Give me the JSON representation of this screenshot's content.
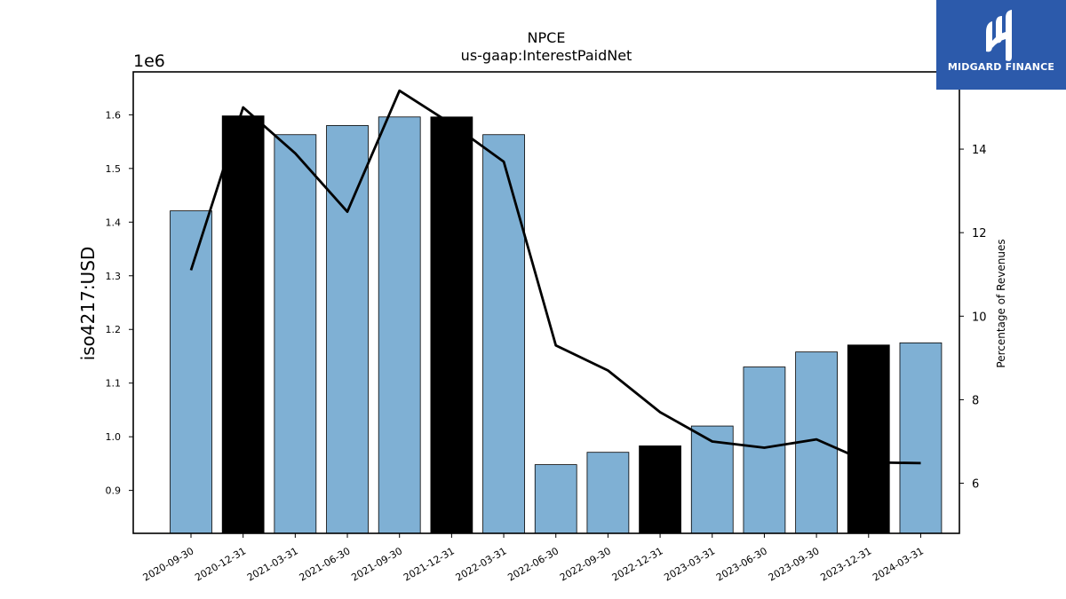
{
  "chart_data": {
    "type": "bar",
    "title": "NPCE",
    "subtitle": "us-gaap:InterestPaidNet",
    "ylabel": "iso4217:USD",
    "y_multiplier_label": "1e6",
    "y2label": "Percentage of Revenues",
    "categories": [
      "2020-09-30",
      "2020-12-31",
      "2021-03-31",
      "2021-06-30",
      "2021-09-30",
      "2021-12-31",
      "2022-03-31",
      "2022-06-30",
      "2022-09-30",
      "2022-12-31",
      "2023-03-31",
      "2023-06-30",
      "2023-09-30",
      "2023-12-31",
      "2024-03-31"
    ],
    "series": [
      {
        "values": [
          1421000,
          1598000,
          1563000,
          1580000,
          1596000,
          1596000,
          1563000,
          948000,
          971000,
          983000,
          1020000,
          1130000,
          1158000,
          1171000,
          1175000
        ]
      },
      {
        "axis": "right",
        "chart_type": "line",
        "values": [
          11.1,
          15.0,
          13.9,
          12.5,
          15.4,
          14.6,
          13.7,
          9.3,
          8.7,
          7.7,
          7.0,
          6.85,
          7.05,
          6.5,
          6.48
        ]
      }
    ],
    "highlighted_categories": [
      "2020-12-31",
      "2021-12-31",
      "2022-12-31",
      "2023-12-31"
    ],
    "yticks": [
      "0.9",
      "1.0",
      "1.1",
      "1.2",
      "1.3",
      "1.4",
      "1.5",
      "1.6"
    ],
    "ylim": [
      820000,
      1680000
    ],
    "y2ticks": [
      "6",
      "8",
      "10",
      "12",
      "14"
    ],
    "y2lim": [
      4.8,
      15.85
    ],
    "colors": {
      "bar": "#7fb0d4",
      "bar_highlight": "#000000",
      "line": "#000000",
      "axis": "#000000"
    }
  },
  "logo": {
    "name": "MIDGARD FINANCE"
  }
}
